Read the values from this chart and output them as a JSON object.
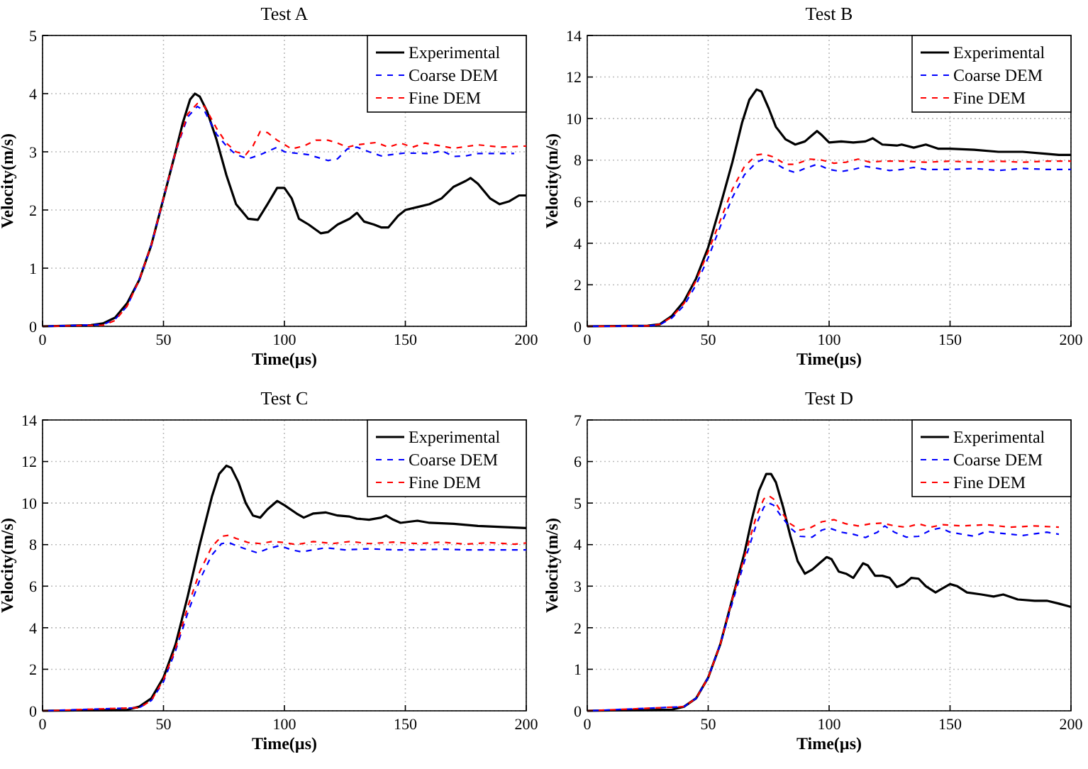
{
  "chart_data": [
    {
      "type": "line",
      "title": "Test A",
      "xlabel": "Time(µs)",
      "ylabel": "Velocity(m/s)",
      "xlim": [
        0,
        200
      ],
      "ylim": [
        0,
        5
      ],
      "xticks": [
        0,
        50,
        100,
        150,
        200
      ],
      "yticks": [
        0,
        1,
        2,
        3,
        4,
        5
      ],
      "grid": true,
      "legend": "top right",
      "series": [
        {
          "name": "Experimental",
          "color": "#000000",
          "line_style": "solid",
          "x": [
            0,
            20,
            25,
            30,
            35,
            40,
            45,
            50,
            55,
            58,
            61,
            63,
            65,
            68,
            72,
            76,
            80,
            85,
            89,
            93,
            97,
            100,
            103,
            106,
            110,
            115,
            118,
            122,
            127,
            130,
            133,
            137,
            140,
            143,
            147,
            150,
            155,
            160,
            165,
            170,
            175,
            177,
            180,
            185,
            189,
            193,
            197,
            200
          ],
          "values": [
            0,
            0.02,
            0.05,
            0.15,
            0.4,
            0.8,
            1.4,
            2.2,
            3.0,
            3.5,
            3.9,
            4.0,
            3.95,
            3.7,
            3.2,
            2.6,
            2.1,
            1.85,
            1.83,
            2.1,
            2.38,
            2.38,
            2.2,
            1.85,
            1.75,
            1.6,
            1.62,
            1.75,
            1.85,
            1.95,
            1.8,
            1.75,
            1.7,
            1.7,
            1.9,
            2.0,
            2.05,
            2.1,
            2.2,
            2.4,
            2.5,
            2.55,
            2.45,
            2.2,
            2.1,
            2.15,
            2.25,
            2.25
          ]
        },
        {
          "name": "Coarse DEM",
          "color": "#0000ff",
          "line_style": "dashed",
          "x": [
            0,
            25,
            30,
            35,
            40,
            45,
            50,
            55,
            60,
            64,
            67,
            72,
            76,
            80,
            85,
            90,
            97,
            100,
            110,
            118,
            122,
            126,
            130,
            135,
            140,
            150,
            160,
            165,
            170,
            175,
            180,
            195
          ],
          "values": [
            0,
            0.03,
            0.12,
            0.35,
            0.8,
            1.4,
            2.2,
            3.0,
            3.6,
            3.78,
            3.7,
            3.3,
            3.1,
            2.95,
            2.88,
            2.95,
            3.08,
            3.0,
            2.95,
            2.85,
            2.88,
            3.05,
            3.08,
            3.0,
            2.93,
            2.98,
            2.97,
            3.02,
            2.92,
            2.93,
            2.97,
            2.97
          ]
        },
        {
          "name": "Fine DEM",
          "color": "#ff0000",
          "line_style": "dashed",
          "x": [
            0,
            25,
            30,
            35,
            40,
            45,
            50,
            55,
            60,
            64,
            67,
            72,
            76,
            80,
            84,
            87,
            90,
            93,
            97,
            103,
            108,
            113,
            118,
            122,
            126,
            130,
            138,
            143,
            148,
            153,
            158,
            165,
            170,
            180,
            190,
            200
          ],
          "values": [
            0,
            0.02,
            0.1,
            0.35,
            0.8,
            1.4,
            2.2,
            3.0,
            3.65,
            3.83,
            3.78,
            3.4,
            3.15,
            3.0,
            2.95,
            3.1,
            3.35,
            3.33,
            3.2,
            3.05,
            3.1,
            3.2,
            3.2,
            3.15,
            3.08,
            3.12,
            3.16,
            3.08,
            3.15,
            3.08,
            3.15,
            3.1,
            3.06,
            3.12,
            3.08,
            3.1
          ]
        }
      ]
    },
    {
      "type": "line",
      "title": "Test B",
      "xlabel": "Time(µs)",
      "ylabel": "Velocity(m/s)",
      "xlim": [
        0,
        200
      ],
      "ylim": [
        0,
        14
      ],
      "xticks": [
        0,
        50,
        100,
        150,
        200
      ],
      "yticks": [
        0,
        2,
        4,
        6,
        8,
        10,
        12,
        14
      ],
      "grid": true,
      "legend": "top right",
      "series": [
        {
          "name": "Experimental",
          "color": "#000000",
          "line_style": "solid",
          "x": [
            0,
            25,
            30,
            35,
            40,
            45,
            50,
            55,
            60,
            64,
            67,
            70,
            72,
            75,
            78,
            82,
            86,
            90,
            93,
            95,
            97,
            100,
            105,
            110,
            115,
            118,
            122,
            128,
            130,
            135,
            140,
            145,
            150,
            160,
            170,
            180,
            190,
            195,
            200
          ],
          "values": [
            0,
            0.03,
            0.1,
            0.5,
            1.2,
            2.3,
            3.8,
            5.8,
            7.9,
            9.8,
            10.9,
            11.4,
            11.3,
            10.5,
            9.6,
            9.0,
            8.75,
            8.9,
            9.2,
            9.4,
            9.2,
            8.85,
            8.9,
            8.85,
            8.9,
            9.05,
            8.75,
            8.7,
            8.75,
            8.6,
            8.75,
            8.55,
            8.55,
            8.5,
            8.4,
            8.4,
            8.3,
            8.25,
            8.25
          ]
        },
        {
          "name": "Coarse DEM",
          "color": "#0000ff",
          "line_style": "dashed",
          "x": [
            0,
            25,
            30,
            35,
            40,
            45,
            50,
            55,
            60,
            65,
            70,
            73,
            77,
            82,
            86,
            90,
            95,
            100,
            105,
            110,
            115,
            120,
            125,
            130,
            135,
            140,
            150,
            160,
            170,
            180,
            190,
            200
          ],
          "values": [
            0,
            0.02,
            0.08,
            0.4,
            1.0,
            2.0,
            3.3,
            4.8,
            6.2,
            7.3,
            7.9,
            8.05,
            7.9,
            7.55,
            7.4,
            7.6,
            7.8,
            7.55,
            7.45,
            7.55,
            7.7,
            7.6,
            7.5,
            7.55,
            7.65,
            7.55,
            7.55,
            7.6,
            7.5,
            7.6,
            7.55,
            7.55
          ]
        },
        {
          "name": "Fine DEM",
          "color": "#ff0000",
          "line_style": "dashed",
          "x": [
            0,
            25,
            30,
            35,
            40,
            45,
            50,
            55,
            60,
            65,
            70,
            73,
            77,
            82,
            86,
            92,
            97,
            102,
            107,
            112,
            117,
            122,
            130,
            140,
            150,
            160,
            170,
            180,
            190,
            200
          ],
          "values": [
            0,
            0.02,
            0.1,
            0.45,
            1.1,
            2.2,
            3.6,
            5.1,
            6.6,
            7.7,
            8.25,
            8.3,
            8.15,
            7.8,
            7.8,
            8.05,
            8.0,
            7.85,
            7.9,
            8.05,
            7.9,
            7.95,
            7.95,
            7.9,
            7.95,
            7.9,
            7.95,
            7.9,
            7.95,
            7.95
          ]
        }
      ]
    },
    {
      "type": "line",
      "title": "Test C",
      "xlabel": "Time(µs)",
      "ylabel": "Velocity(m/s)",
      "xlim": [
        0,
        200
      ],
      "ylim": [
        0,
        14
      ],
      "xticks": [
        0,
        50,
        100,
        150,
        200
      ],
      "yticks": [
        0,
        2,
        4,
        6,
        8,
        10,
        12,
        14
      ],
      "grid": true,
      "legend": "top right",
      "series": [
        {
          "name": "Experimental",
          "color": "#000000",
          "line_style": "solid",
          "x": [
            0,
            35,
            40,
            45,
            50,
            55,
            60,
            65,
            70,
            73,
            76,
            78,
            81,
            84,
            87,
            90,
            93,
            97,
            100,
            105,
            108,
            112,
            117,
            122,
            127,
            130,
            135,
            140,
            142,
            145,
            148,
            155,
            160,
            170,
            180,
            190,
            200
          ],
          "values": [
            0,
            0.05,
            0.2,
            0.6,
            1.6,
            3.2,
            5.5,
            8.0,
            10.3,
            11.4,
            11.8,
            11.7,
            11.0,
            10.0,
            9.4,
            9.3,
            9.7,
            10.1,
            9.9,
            9.5,
            9.3,
            9.5,
            9.55,
            9.4,
            9.35,
            9.25,
            9.2,
            9.3,
            9.4,
            9.2,
            9.05,
            9.15,
            9.05,
            9.0,
            8.9,
            8.85,
            8.8
          ]
        },
        {
          "name": "Coarse DEM",
          "color": "#0000ff",
          "line_style": "dashed",
          "x": [
            0,
            40,
            45,
            50,
            55,
            60,
            65,
            70,
            74,
            77,
            80,
            85,
            89,
            93,
            98,
            103,
            107,
            112,
            117,
            125,
            135,
            145,
            155,
            165,
            175,
            190,
            200
          ],
          "values": [
            0,
            0.15,
            0.5,
            1.4,
            2.9,
            4.7,
            6.3,
            7.5,
            8.05,
            8.1,
            7.95,
            7.75,
            7.6,
            7.8,
            7.95,
            7.75,
            7.65,
            7.75,
            7.85,
            7.75,
            7.8,
            7.75,
            7.75,
            7.78,
            7.75,
            7.75,
            7.75
          ]
        },
        {
          "name": "Fine DEM",
          "color": "#ff0000",
          "line_style": "dashed",
          "x": [
            0,
            40,
            45,
            50,
            55,
            60,
            65,
            70,
            74,
            77,
            80,
            85,
            90,
            95,
            100,
            105,
            112,
            120,
            127,
            135,
            145,
            155,
            165,
            175,
            185,
            195,
            200
          ],
          "values": [
            0,
            0.15,
            0.5,
            1.5,
            3.0,
            5.0,
            6.7,
            7.9,
            8.4,
            8.45,
            8.3,
            8.1,
            8.05,
            8.15,
            8.1,
            8.0,
            8.15,
            8.05,
            8.15,
            8.05,
            8.12,
            8.05,
            8.12,
            8.02,
            8.1,
            8.02,
            8.08
          ]
        }
      ]
    },
    {
      "type": "line",
      "title": "Test D",
      "xlabel": "Time(µs)",
      "ylabel": "Velocity(m/s)",
      "xlim": [
        0,
        200
      ],
      "ylim": [
        0,
        7
      ],
      "xticks": [
        0,
        50,
        100,
        150,
        200
      ],
      "yticks": [
        0,
        1,
        2,
        3,
        4,
        5,
        6,
        7
      ],
      "grid": true,
      "legend": "top right",
      "series": [
        {
          "name": "Experimental",
          "color": "#000000",
          "line_style": "solid",
          "x": [
            0,
            35,
            40,
            45,
            50,
            55,
            60,
            65,
            68,
            71,
            74,
            76,
            78,
            81,
            84,
            87,
            90,
            93,
            96,
            99,
            101,
            104,
            107,
            110,
            114,
            116,
            119,
            122,
            125,
            128,
            131,
            134,
            137,
            140,
            144,
            147,
            150,
            153,
            157,
            163,
            168,
            172,
            178,
            185,
            190,
            195,
            200
          ],
          "values": [
            0,
            0.03,
            0.1,
            0.3,
            0.8,
            1.6,
            2.7,
            3.8,
            4.6,
            5.3,
            5.7,
            5.7,
            5.5,
            4.9,
            4.2,
            3.6,
            3.3,
            3.4,
            3.55,
            3.7,
            3.65,
            3.35,
            3.3,
            3.2,
            3.55,
            3.5,
            3.25,
            3.25,
            3.2,
            2.98,
            3.05,
            3.2,
            3.18,
            3.0,
            2.85,
            2.95,
            3.05,
            3.0,
            2.85,
            2.8,
            2.75,
            2.8,
            2.68,
            2.65,
            2.65,
            2.58,
            2.5
          ]
        },
        {
          "name": "Coarse DEM",
          "color": "#0000ff",
          "line_style": "dashed",
          "x": [
            0,
            40,
            45,
            50,
            55,
            60,
            65,
            70,
            73,
            75,
            77,
            80,
            84,
            88,
            93,
            97,
            100,
            105,
            110,
            115,
            120,
            123,
            127,
            132,
            137,
            142,
            146,
            150,
            155,
            160,
            165,
            170,
            180,
            190,
            195
          ],
          "values": [
            0,
            0.1,
            0.3,
            0.8,
            1.6,
            2.6,
            3.6,
            4.5,
            4.9,
            5.0,
            4.95,
            4.7,
            4.4,
            4.2,
            4.18,
            4.35,
            4.4,
            4.3,
            4.25,
            4.17,
            4.3,
            4.45,
            4.3,
            4.18,
            4.2,
            4.35,
            4.4,
            4.3,
            4.25,
            4.2,
            4.32,
            4.28,
            4.22,
            4.3,
            4.25
          ]
        },
        {
          "name": "Fine DEM",
          "color": "#ff0000",
          "line_style": "dashed",
          "x": [
            0,
            40,
            45,
            50,
            55,
            60,
            65,
            70,
            73,
            75,
            77,
            80,
            84,
            88,
            92,
            97,
            102,
            107,
            112,
            117,
            122,
            127,
            132,
            137,
            142,
            147,
            155,
            165,
            175,
            185,
            195
          ],
          "values": [
            0,
            0.1,
            0.3,
            0.8,
            1.6,
            2.7,
            3.7,
            4.7,
            5.1,
            5.18,
            5.1,
            4.8,
            4.5,
            4.35,
            4.4,
            4.55,
            4.6,
            4.5,
            4.45,
            4.5,
            4.52,
            4.45,
            4.42,
            4.5,
            4.42,
            4.48,
            4.45,
            4.48,
            4.42,
            4.45,
            4.42
          ]
        }
      ]
    }
  ]
}
